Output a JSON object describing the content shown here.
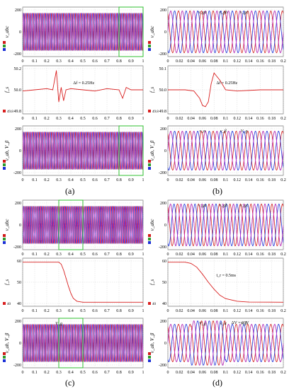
{
  "captions": {
    "a": "(a)",
    "b": "(b)",
    "c": "(c)",
    "d": "(d)"
  },
  "colors": {
    "phase_a": "#e8b400",
    "phase_b": "#2e9a2e",
    "phase_c": "#d11a1a",
    "phase_d": "#1a2fd6",
    "freq": "#d92020",
    "magenta": "#d42ad4",
    "zoom_box": "#2fbf2f"
  },
  "chart_data": [
    {
      "id": "a",
      "type": "line",
      "panels": [
        {
          "kind": "voltage",
          "ylabel": "v_abc",
          "yticks": [
            "200",
            "0",
            "-200"
          ],
          "ylim": [
            -290,
            290
          ],
          "xticks": [
            "0",
            "0.1",
            "0.2",
            "0.3",
            "0.4",
            "0.5",
            "0.6",
            "0.7",
            "0.8",
            "0.9",
            "1"
          ],
          "xlim": [
            0,
            1
          ],
          "zoom_window": [
            0.8,
            1.0
          ],
          "freq_hz": 50
        },
        {
          "kind": "frequency",
          "ylabel": "f_s",
          "yticks": [
            "50.2",
            "50.0",
            "49.8"
          ],
          "ylim": [
            49.8,
            50.2
          ],
          "xticks": [
            "0",
            "0.1",
            "0.2",
            "0.3",
            "0.4",
            "0.5",
            "0.6",
            "0.7",
            "0.8",
            "0.9",
            "1"
          ],
          "xlim": [
            0,
            1
          ],
          "annotation": "Δf = 0.25Hz",
          "legend_value": "49.8",
          "x": [
            0,
            0.1,
            0.2,
            0.25,
            0.28,
            0.3,
            0.32,
            0.34,
            0.36,
            0.4,
            0.5,
            0.6,
            0.7,
            0.8,
            0.83,
            0.86,
            0.9,
            1
          ],
          "y": [
            49.99,
            50.0,
            50.01,
            50.0,
            50.16,
            49.9,
            50.02,
            49.91,
            50.0,
            50.01,
            50.0,
            49.99,
            50.01,
            50.0,
            49.93,
            50.02,
            50.0,
            50.0
          ]
        },
        {
          "kind": "voltage",
          "ylabel": "v_ab, V_β",
          "yticks": [
            "200",
            "0",
            "-200"
          ],
          "ylim": [
            -290,
            290
          ],
          "xticks": [
            "0",
            "0.1",
            "0.2",
            "0.3",
            "0.4",
            "0.5",
            "0.6",
            "0.7",
            "0.8",
            "0.9",
            "1"
          ],
          "xlim": [
            0,
            1
          ],
          "zoom_window": [
            0.8,
            1.0
          ],
          "freq_hz": 50
        }
      ]
    },
    {
      "id": "b",
      "type": "line",
      "panels": [
        {
          "kind": "voltage",
          "ylabel": "v_abc",
          "yticks": [
            "200",
            "0",
            "-200"
          ],
          "ylim": [
            -260,
            260
          ],
          "xticks": [
            "0",
            "0.02",
            "0.04",
            "0.06",
            "0.08",
            "0.1",
            "0.12",
            "0.14",
            "0.16",
            "0.18",
            "0.2"
          ],
          "xlim": [
            0,
            0.2
          ],
          "labels": [
            "v_ga",
            "v_gb",
            "v_gc"
          ],
          "freq_hz": 50
        },
        {
          "kind": "frequency",
          "ylabel": "f_s",
          "yticks": [
            "50.1",
            "50.0",
            "49.8"
          ],
          "ylim": [
            49.8,
            50.2
          ],
          "xticks": [
            "0",
            "0.02",
            "0.04",
            "0.06",
            "0.08",
            "0.1",
            "0.12",
            "0.14",
            "0.16",
            "0.18",
            "0.2"
          ],
          "xlim": [
            0,
            0.2
          ],
          "annotation": "Δf = 0.25Hz",
          "legend_value": "49.8",
          "x": [
            0,
            0.03,
            0.045,
            0.055,
            0.06,
            0.065,
            0.07,
            0.075,
            0.08,
            0.09,
            0.1,
            0.12,
            0.16,
            0.2
          ],
          "y": [
            50.0,
            50.0,
            49.99,
            49.93,
            49.87,
            49.86,
            49.9,
            50.05,
            50.14,
            50.08,
            50.0,
            49.99,
            50.0,
            50.0
          ]
        },
        {
          "kind": "voltage",
          "ylabel": "v_ab, V_β",
          "yticks": [
            "200",
            "0",
            "-200"
          ],
          "ylim": [
            -280,
            280
          ],
          "xticks": [
            "0",
            "0.02",
            "0.04",
            "0.06",
            "0.08",
            "0.1",
            "0.12",
            "0.14",
            "0.16",
            "0.18",
            "0.2"
          ],
          "xlim": [
            0,
            0.2
          ],
          "labels": [
            "v_α",
            "v_β",
            "V_g"
          ],
          "freq_hz": 50
        }
      ]
    },
    {
      "id": "c",
      "type": "line",
      "panels": [
        {
          "kind": "voltage",
          "ylabel": "v_abc",
          "yticks": [
            "200",
            "0",
            "-200"
          ],
          "ylim": [
            -290,
            290
          ],
          "xticks": [
            "0",
            "0.1",
            "0.2",
            "0.3",
            "0.4",
            "0.5",
            "0.6",
            "0.7",
            "0.8",
            "0.9",
            "1"
          ],
          "xlim": [
            0,
            1
          ],
          "zoom_window": [
            0.3,
            0.5
          ],
          "freq_hz": 50
        },
        {
          "kind": "frequency",
          "ylabel": "f_s",
          "yticks": [
            "60",
            "50",
            "40"
          ],
          "ylim": [
            38,
            62
          ],
          "xticks": [
            "0",
            "0.1",
            "0.2",
            "0.3",
            "0.4",
            "0.5",
            "0.6",
            "0.7",
            "0.8",
            "0.9",
            "1"
          ],
          "xlim": [
            0,
            1
          ],
          "legend_value": "40",
          "x": [
            0,
            0.3,
            0.32,
            0.34,
            0.36,
            0.38,
            0.4,
            0.42,
            0.45,
            0.5,
            0.6,
            1
          ],
          "y": [
            60,
            60,
            59,
            56,
            52,
            48,
            44.5,
            42,
            40.5,
            40,
            40,
            40
          ]
        },
        {
          "kind": "voltage",
          "ylabel": "v_ab, V_β",
          "yticks": [
            "200",
            "0",
            "-200"
          ],
          "ylim": [
            -290,
            290
          ],
          "xticks": [
            "0",
            "0.1",
            "0.2",
            "0.3",
            "0.4",
            "0.5",
            "0.6",
            "0.7",
            "0.8",
            "0.9",
            "1"
          ],
          "xlim": [
            0,
            1
          ],
          "labels": [
            "V_g"
          ],
          "zoom_window": [
            0.3,
            0.5
          ],
          "freq_hz": 50
        }
      ]
    },
    {
      "id": "d",
      "type": "line",
      "panels": [
        {
          "kind": "voltage",
          "ylabel": "v_abc",
          "yticks": [
            "200",
            "0",
            "-200"
          ],
          "ylim": [
            -260,
            260
          ],
          "xticks": [
            "0",
            "0.02",
            "0.04",
            "0.06",
            "0.08",
            "0.1",
            "0.12",
            "0.14",
            "0.16",
            "0.18",
            "0.2"
          ],
          "xlim": [
            0,
            0.2
          ],
          "labels": [
            "v_ga",
            "v_gb",
            "v_gc"
          ],
          "freq_hz": 50
        },
        {
          "kind": "frequency",
          "ylabel": "f_s",
          "yticks": [
            "60",
            "50",
            "40"
          ],
          "ylim": [
            38,
            62
          ],
          "xticks": [
            "0",
            "0.02",
            "0.04",
            "0.06",
            "0.08",
            "0.1",
            "0.12",
            "0.14",
            "0.16",
            "0.18",
            "0.2"
          ],
          "xlim": [
            0,
            0.2
          ],
          "annotation": "t_r = 0.5ms",
          "legend_value": "40",
          "x": [
            0,
            0.03,
            0.04,
            0.05,
            0.06,
            0.07,
            0.08,
            0.09,
            0.1,
            0.12,
            0.14,
            0.2
          ],
          "y": [
            60,
            60,
            59.4,
            57.5,
            54,
            50,
            46.5,
            43.5,
            41.8,
            40.5,
            40.1,
            40
          ]
        },
        {
          "kind": "voltage",
          "ylabel": "v_ab, V_β",
          "yticks": [
            "200",
            "0",
            "-200"
          ],
          "ylim": [
            -290,
            290
          ],
          "xticks": [
            "0",
            "0.02",
            "0.04",
            "0.06",
            "0.08",
            "0.1",
            "0.12",
            "0.14",
            "0.16",
            "0.18",
            "0.2"
          ],
          "xlim": [
            0,
            0.2
          ],
          "labels": [
            "V_g",
            "v_α",
            "v_β"
          ],
          "annotation": "ΔV = 60V",
          "freq_hz": 50
        }
      ]
    }
  ]
}
